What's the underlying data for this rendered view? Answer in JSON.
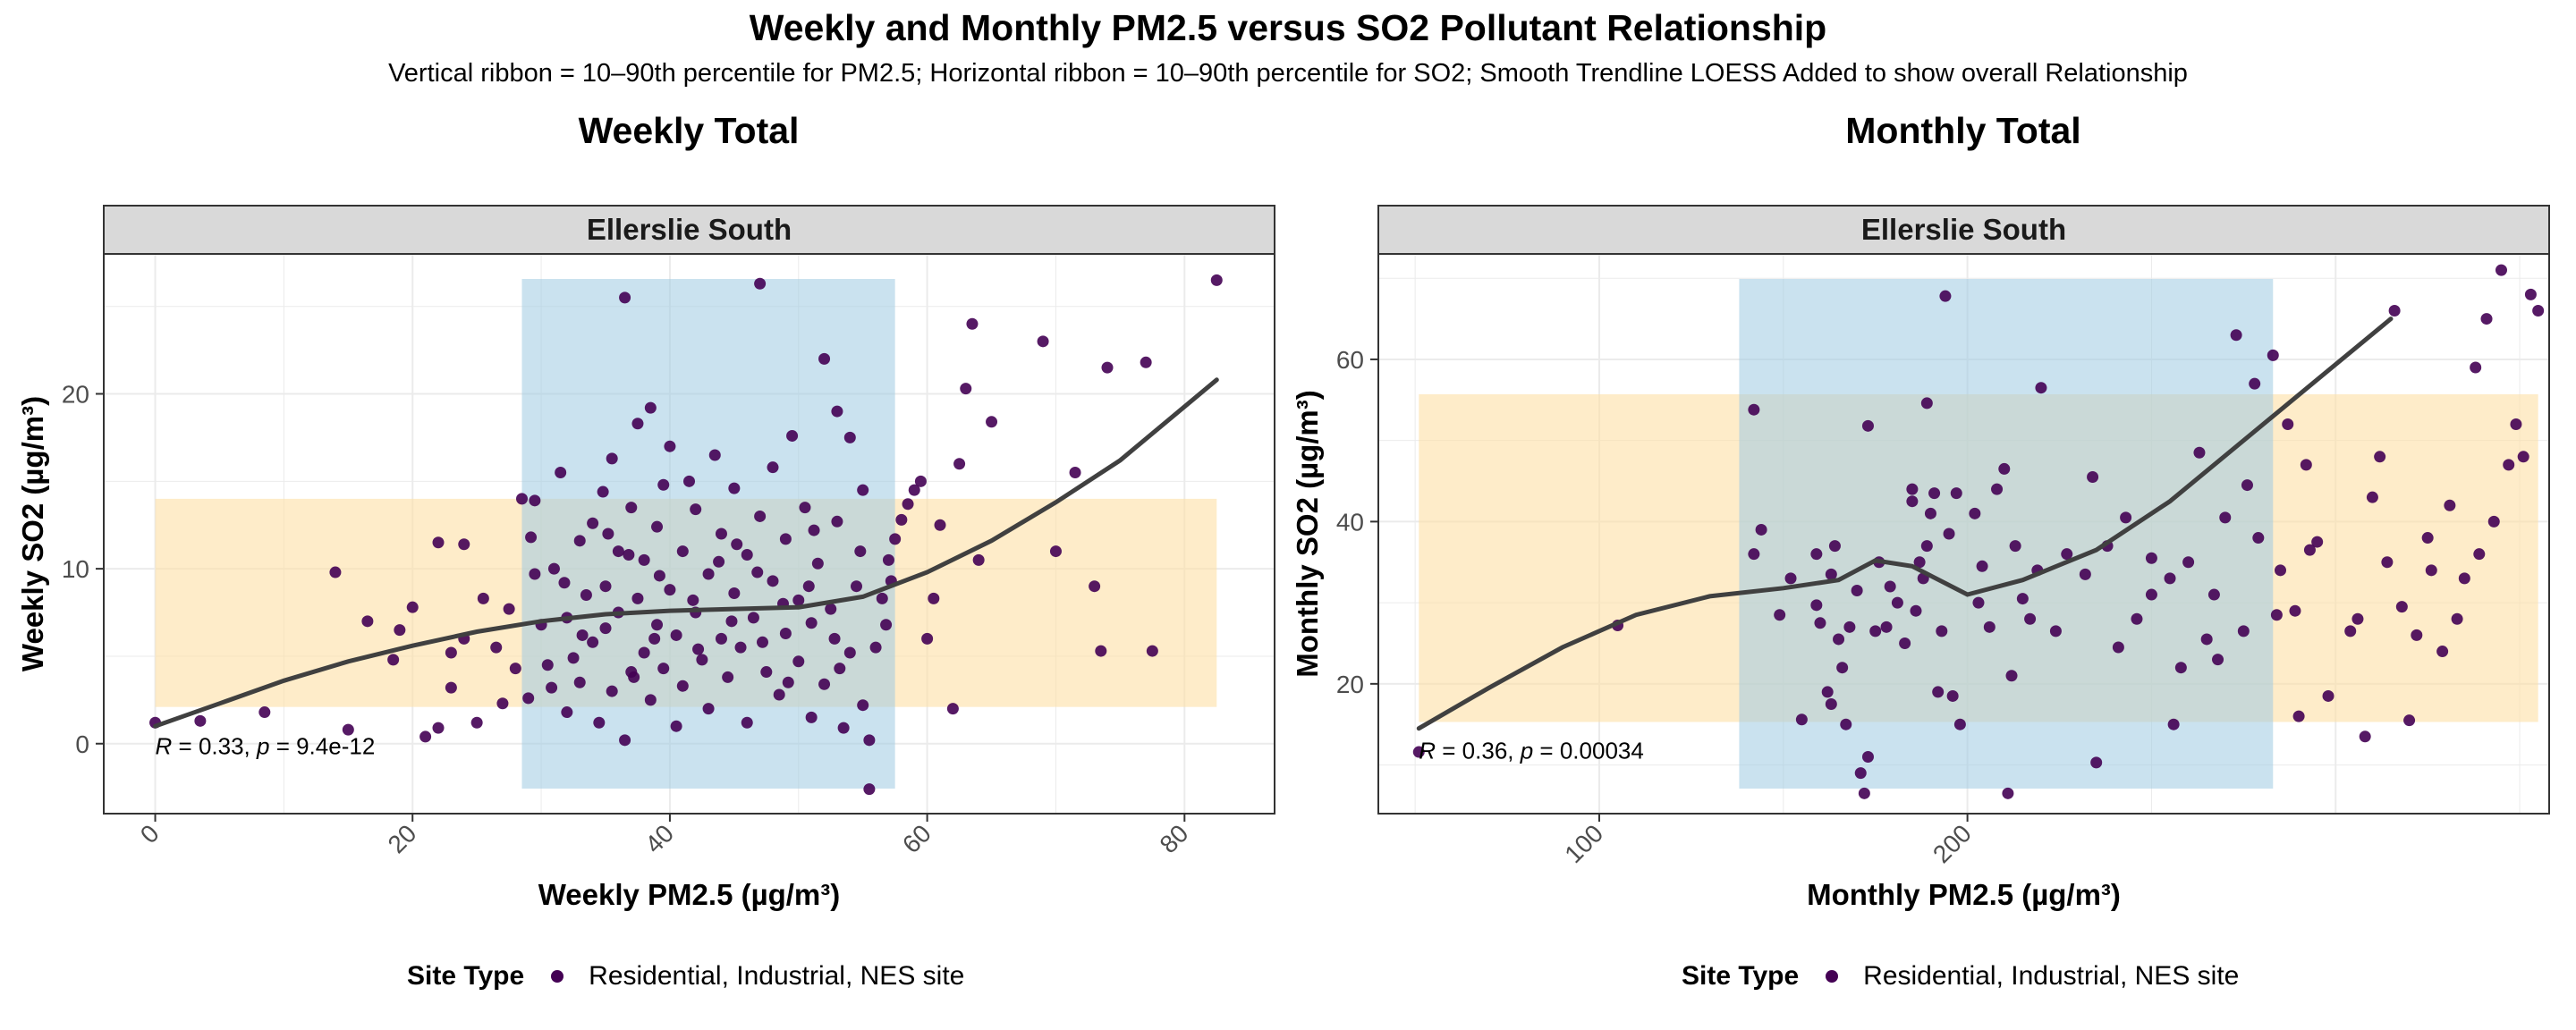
{
  "title": "Weekly and Monthly PM2.5 versus SO2 Pollutant Relationship",
  "subtitle": "Vertical ribbon = 10–90th percentile for PM2.5; Horizontal ribbon = 10–90th percentile for SO2; Smooth Trendline LOESS Added to show overall Relationship",
  "colors": {
    "point": "#440154",
    "trend": "#404040",
    "ribbon_pm": "#9ecae1",
    "ribbon_so2": "#fde0a5",
    "strip_bg": "#d9d9d9",
    "grid": "#ebebeb"
  },
  "legend": {
    "title": "Site Type",
    "label": "Residential, Industrial, NES site"
  },
  "chart_data": [
    {
      "type": "scatter",
      "panel_title": "Weekly Total",
      "facet": "Ellerslie South",
      "xlabel": "Weekly PM2.5 (µg/m³)",
      "ylabel": "Weekly SO2 (µg/m³)",
      "xlim": [
        -4,
        87
      ],
      "ylim": [
        -4,
        28
      ],
      "x_ticks": [
        0,
        20,
        40,
        60,
        80
      ],
      "y_ticks": [
        0,
        10,
        20
      ],
      "grid": true,
      "legend_position": "bottom",
      "ribbon_x": [
        28.5,
        57.5
      ],
      "ribbon_y": [
        2.1,
        14.0
      ],
      "stat_text": {
        "r": "R = 0.33, ",
        "p": "p",
        "rest": " = 9.4e-12"
      },
      "trend": [
        [
          0,
          1.0
        ],
        [
          5,
          2.3
        ],
        [
          10,
          3.6
        ],
        [
          15,
          4.7
        ],
        [
          20,
          5.6
        ],
        [
          25,
          6.4
        ],
        [
          30,
          7.0
        ],
        [
          35,
          7.4
        ],
        [
          40,
          7.6
        ],
        [
          45,
          7.7
        ],
        [
          50,
          7.8
        ],
        [
          55,
          8.4
        ],
        [
          60,
          9.8
        ],
        [
          65,
          11.6
        ],
        [
          70,
          13.8
        ],
        [
          75,
          16.2
        ],
        [
          82.5,
          20.8
        ]
      ],
      "points": [
        [
          0,
          1.2
        ],
        [
          3.5,
          1.3
        ],
        [
          8.5,
          1.8
        ],
        [
          14,
          9.8
        ],
        [
          15,
          0.8
        ],
        [
          16.5,
          7.0
        ],
        [
          18.5,
          4.8
        ],
        [
          19,
          6.5
        ],
        [
          20,
          7.8
        ],
        [
          21,
          0.4
        ],
        [
          22,
          0.9
        ],
        [
          22,
          11.5
        ],
        [
          23,
          3.2
        ],
        [
          23,
          5.2
        ],
        [
          24,
          11.4
        ],
        [
          24,
          6.0
        ],
        [
          25,
          1.2
        ],
        [
          25.5,
          8.3
        ],
        [
          26.5,
          5.5
        ],
        [
          27,
          2.3
        ],
        [
          27.5,
          7.7
        ],
        [
          28,
          4.3
        ],
        [
          28.5,
          14.0
        ],
        [
          29,
          2.6
        ],
        [
          29.5,
          13.9
        ],
        [
          29.5,
          9.7
        ],
        [
          30,
          6.8
        ],
        [
          30.5,
          4.5
        ],
        [
          31,
          10.0
        ],
        [
          31.5,
          15.5
        ],
        [
          32,
          1.8
        ],
        [
          32,
          7.2
        ],
        [
          32.5,
          4.9
        ],
        [
          33,
          11.6
        ],
        [
          33,
          3.5
        ],
        [
          33.5,
          8.5
        ],
        [
          34,
          5.8
        ],
        [
          34,
          12.6
        ],
        [
          34.5,
          1.2
        ],
        [
          35,
          9.0
        ],
        [
          35,
          6.6
        ],
        [
          35.5,
          16.3
        ],
        [
          35.5,
          3.0
        ],
        [
          36,
          11.0
        ],
        [
          36,
          7.5
        ],
        [
          36.5,
          25.5
        ],
        [
          36.5,
          0.2
        ],
        [
          37,
          4.1
        ],
        [
          37,
          13.5
        ],
        [
          37.5,
          18.3
        ],
        [
          37.5,
          8.3
        ],
        [
          38,
          5.2
        ],
        [
          38,
          10.5
        ],
        [
          38.5,
          19.2
        ],
        [
          38.5,
          2.5
        ],
        [
          39,
          6.8
        ],
        [
          39,
          12.4
        ],
        [
          39.5,
          14.8
        ],
        [
          39.5,
          4.3
        ],
        [
          40,
          8.8
        ],
        [
          40,
          17.0
        ],
        [
          40.5,
          1.0
        ],
        [
          40.5,
          6.2
        ],
        [
          41,
          11.0
        ],
        [
          41,
          3.3
        ],
        [
          41.5,
          15.0
        ],
        [
          42,
          7.5
        ],
        [
          42,
          13.4
        ],
        [
          42.5,
          4.8
        ],
        [
          43,
          9.7
        ],
        [
          43,
          2.0
        ],
        [
          43.5,
          16.5
        ],
        [
          44,
          6.0
        ],
        [
          44,
          12.0
        ],
        [
          44.5,
          3.8
        ],
        [
          45,
          8.6
        ],
        [
          45,
          14.6
        ],
        [
          45.5,
          5.5
        ],
        [
          46,
          10.8
        ],
        [
          46,
          1.2
        ],
        [
          46.5,
          7.2
        ],
        [
          47,
          26.3
        ],
        [
          47,
          13.0
        ],
        [
          47.5,
          4.1
        ],
        [
          48,
          9.3
        ],
        [
          48,
          15.8
        ],
        [
          48.5,
          2.8
        ],
        [
          49,
          6.3
        ],
        [
          49,
          11.7
        ],
        [
          49.5,
          17.6
        ],
        [
          50,
          4.7
        ],
        [
          50,
          8.2
        ],
        [
          50.5,
          13.5
        ],
        [
          51,
          1.5
        ],
        [
          51,
          6.9
        ],
        [
          51.5,
          10.3
        ],
        [
          52,
          22.0
        ],
        [
          52,
          3.4
        ],
        [
          52.5,
          7.7
        ],
        [
          53,
          12.7
        ],
        [
          53,
          19.0
        ],
        [
          53.5,
          0.9
        ],
        [
          54,
          5.2
        ],
        [
          54,
          17.5
        ],
        [
          54.5,
          9.0
        ],
        [
          55,
          2.2
        ],
        [
          55,
          14.5
        ],
        [
          55.5,
          0.2
        ],
        [
          55.5,
          -2.6
        ],
        [
          56,
          5.5
        ],
        [
          56.5,
          8.3
        ],
        [
          57,
          10.5
        ],
        [
          57.5,
          11.7
        ],
        [
          58,
          12.8
        ],
        [
          58.5,
          13.7
        ],
        [
          59,
          14.5
        ],
        [
          59.5,
          15.0
        ],
        [
          56.8,
          6.8
        ],
        [
          57.2,
          9.3
        ],
        [
          60,
          6.0
        ],
        [
          61,
          12.5
        ],
        [
          62,
          2.0
        ],
        [
          62.5,
          16.0
        ],
        [
          63,
          20.3
        ],
        [
          63.5,
          24.0
        ],
        [
          64,
          10.5
        ],
        [
          65,
          18.4
        ],
        [
          69,
          23.0
        ],
        [
          70,
          11.0
        ],
        [
          71.5,
          15.5
        ],
        [
          73,
          9.0
        ],
        [
          73.5,
          5.3
        ],
        [
          74,
          21.5
        ],
        [
          77,
          21.8
        ],
        [
          77.5,
          5.3
        ],
        [
          82.5,
          26.5
        ],
        [
          60.5,
          8.3
        ],
        [
          29.2,
          11.8
        ],
        [
          30.8,
          3.2
        ],
        [
          31.8,
          9.2
        ],
        [
          34.8,
          14.4
        ],
        [
          36.8,
          10.8
        ],
        [
          38.8,
          6.0
        ],
        [
          41.8,
          8.2
        ],
        [
          43.8,
          10.4
        ],
        [
          44.8,
          7.0
        ],
        [
          46.8,
          9.8
        ],
        [
          48.8,
          8.0
        ],
        [
          50.8,
          9.0
        ],
        [
          52.8,
          6.0
        ],
        [
          54.8,
          11.0
        ],
        [
          33.2,
          6.2
        ],
        [
          35.2,
          12.0
        ],
        [
          37.2,
          3.8
        ],
        [
          39.2,
          9.6
        ],
        [
          42.2,
          5.4
        ],
        [
          45.2,
          11.4
        ],
        [
          47.2,
          5.8
        ],
        [
          49.2,
          3.5
        ],
        [
          51.2,
          12.2
        ],
        [
          53.2,
          4.3
        ]
      ]
    },
    {
      "type": "scatter",
      "panel_title": "Monthly Total",
      "facet": "Ellerslie South",
      "xlabel": "Monthly PM2.5 (µg/m³)",
      "ylabel": "Monthly SO2 (µg/m³)",
      "xlim": [
        40,
        358
      ],
      "ylim": [
        4,
        73
      ],
      "x_ticks": [
        100,
        200
      ],
      "y_ticks": [
        20,
        40,
        60
      ],
      "grid": true,
      "legend_position": "bottom",
      "ribbon_x": [
        138,
        283
      ],
      "ribbon_y": [
        15.3,
        55.7
      ],
      "stat_text": {
        "r": "R = 0.36, ",
        "p": "p",
        "rest": " = 0.00034"
      },
      "trend": [
        [
          51,
          14.5
        ],
        [
          70,
          19.5
        ],
        [
          90,
          24.5
        ],
        [
          110,
          28.5
        ],
        [
          130,
          30.8
        ],
        [
          150,
          31.8
        ],
        [
          165,
          32.8
        ],
        [
          175,
          35.2
        ],
        [
          185,
          34.5
        ],
        [
          200,
          31.0
        ],
        [
          215,
          32.8
        ],
        [
          235,
          36.5
        ],
        [
          255,
          42.5
        ],
        [
          275,
          50.0
        ],
        [
          295,
          57.5
        ],
        [
          315,
          65.0
        ]
      ],
      "points": [
        [
          51,
          11.6
        ],
        [
          105,
          27.2
        ],
        [
          142,
          53.8
        ],
        [
          142,
          36.0
        ],
        [
          144,
          39.0
        ],
        [
          149,
          28.5
        ],
        [
          152,
          33.0
        ],
        [
          155,
          15.6
        ],
        [
          159,
          29.7
        ],
        [
          159,
          36.0
        ],
        [
          160,
          27.5
        ],
        [
          162,
          19.0
        ],
        [
          163,
          17.5
        ],
        [
          163,
          33.5
        ],
        [
          164,
          37.0
        ],
        [
          165,
          25.5
        ],
        [
          166,
          22.0
        ],
        [
          167,
          15.0
        ],
        [
          168,
          27.0
        ],
        [
          170,
          31.5
        ],
        [
          171,
          9.0
        ],
        [
          172,
          6.5
        ],
        [
          173,
          51.8
        ],
        [
          173,
          11.0
        ],
        [
          175,
          26.5
        ],
        [
          176,
          35.0
        ],
        [
          178,
          27.0
        ],
        [
          179,
          32.0
        ],
        [
          181,
          30.0
        ],
        [
          183,
          25.0
        ],
        [
          185,
          42.5
        ],
        [
          185,
          44.0
        ],
        [
          186,
          29.0
        ],
        [
          187,
          35.0
        ],
        [
          188,
          33.0
        ],
        [
          189,
          37.0
        ],
        [
          189,
          54.6
        ],
        [
          190,
          41.0
        ],
        [
          191,
          43.5
        ],
        [
          192,
          19.0
        ],
        [
          193,
          26.5
        ],
        [
          194,
          67.8
        ],
        [
          195,
          38.5
        ],
        [
          196,
          18.5
        ],
        [
          197,
          43.5
        ],
        [
          198,
          15.0
        ],
        [
          202,
          41.0
        ],
        [
          203,
          30.0
        ],
        [
          204,
          34.5
        ],
        [
          206,
          27.0
        ],
        [
          208,
          44.0
        ],
        [
          210,
          46.5
        ],
        [
          211,
          6.5
        ],
        [
          212,
          21.0
        ],
        [
          213,
          37.0
        ],
        [
          215,
          30.5
        ],
        [
          217,
          28.0
        ],
        [
          219,
          34.0
        ],
        [
          220,
          56.5
        ],
        [
          224,
          26.5
        ],
        [
          227,
          36.0
        ],
        [
          232,
          33.5
        ],
        [
          234,
          45.5
        ],
        [
          235,
          10.3
        ],
        [
          238,
          37.0
        ],
        [
          241,
          24.5
        ],
        [
          243,
          40.5
        ],
        [
          246,
          28.0
        ],
        [
          250,
          31.0
        ],
        [
          250,
          35.5
        ],
        [
          255,
          33.0
        ],
        [
          256,
          15.0
        ],
        [
          258,
          22.0
        ],
        [
          260,
          35.0
        ],
        [
          263,
          48.5
        ],
        [
          265,
          25.5
        ],
        [
          267,
          31.0
        ],
        [
          268,
          23.0
        ],
        [
          270,
          40.5
        ],
        [
          273,
          63.0
        ],
        [
          275,
          26.5
        ],
        [
          276,
          44.5
        ],
        [
          278,
          57.0
        ],
        [
          279,
          38.0
        ],
        [
          283,
          60.5
        ],
        [
          284,
          28.5
        ],
        [
          285,
          34.0
        ],
        [
          287,
          52.0
        ],
        [
          289,
          29.0
        ],
        [
          290,
          16.0
        ],
        [
          292,
          47.0
        ],
        [
          293,
          36.5
        ],
        [
          295,
          37.5
        ],
        [
          298,
          18.5
        ],
        [
          304,
          26.5
        ],
        [
          306,
          28.0
        ],
        [
          308,
          13.5
        ],
        [
          310,
          43.0
        ],
        [
          312,
          48.0
        ],
        [
          314,
          35.0
        ],
        [
          316,
          66.0
        ],
        [
          318,
          29.5
        ],
        [
          320,
          15.5
        ],
        [
          322,
          26.0
        ],
        [
          325,
          38.0
        ],
        [
          326,
          34.0
        ],
        [
          329,
          24.0
        ],
        [
          331,
          42.0
        ],
        [
          333,
          28.0
        ],
        [
          335,
          33.0
        ],
        [
          338,
          59.0
        ],
        [
          339,
          36.0
        ],
        [
          341,
          65.0
        ],
        [
          343,
          40.0
        ],
        [
          345,
          71.0
        ],
        [
          347,
          47.0
        ],
        [
          349,
          52.0
        ],
        [
          351,
          48.0
        ],
        [
          353,
          68.0
        ],
        [
          355,
          66.0
        ]
      ]
    }
  ]
}
